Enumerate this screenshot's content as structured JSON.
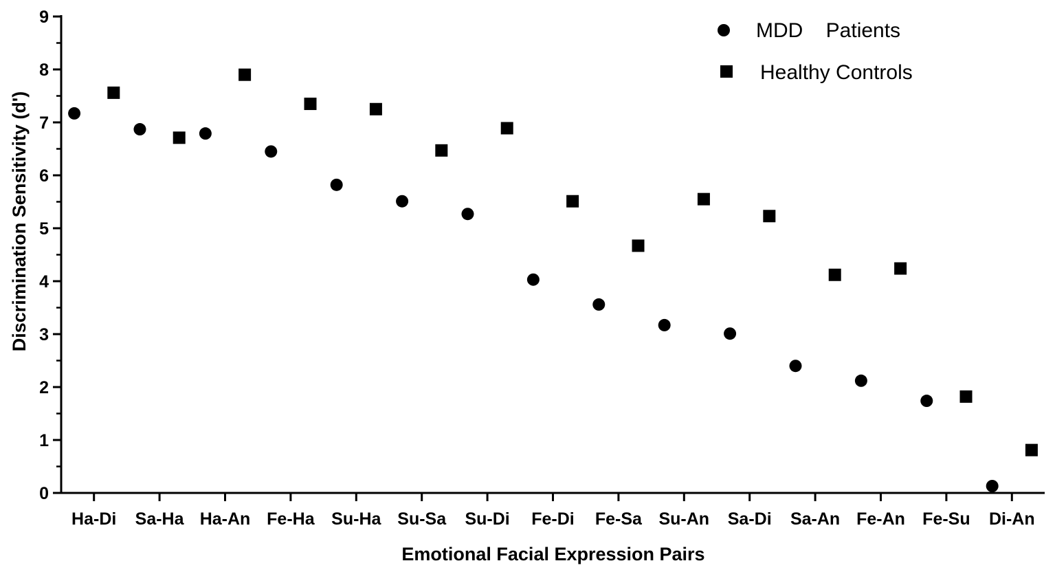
{
  "chart_data": {
    "type": "scatter",
    "xlabel": "Emotional Facial Expression Pairs",
    "ylabel": "Discrimination Sensitivity (d')",
    "ylim": [
      0,
      9
    ],
    "yticks": [
      "0",
      "1",
      "2",
      "3",
      "4",
      "5",
      "6",
      "7",
      "8",
      "9"
    ],
    "categories": [
      "Ha-Di",
      "Sa-Ha",
      "Ha-An",
      "Fe-Ha",
      "Su-Ha",
      "Su-Sa",
      "Su-Di",
      "Fe-Di",
      "Fe-Sa",
      "Su-An",
      "Sa-Di",
      "Sa-An",
      "Fe-An",
      "Fe-Su",
      "Di-An"
    ],
    "series": [
      {
        "name": "MDD    Patients",
        "marker": "circle",
        "color": "#000000",
        "values": [
          7.17,
          6.87,
          6.79,
          6.45,
          5.82,
          5.51,
          5.27,
          4.03,
          3.56,
          3.17,
          3.01,
          2.4,
          2.12,
          1.74,
          0.13
        ]
      },
      {
        "name": "Healthy Controls",
        "marker": "square",
        "color": "#000000",
        "values": [
          7.56,
          6.71,
          7.9,
          7.35,
          7.25,
          6.47,
          6.89,
          5.51,
          4.67,
          5.55,
          5.23,
          4.12,
          4.24,
          1.82,
          0.81
        ]
      }
    ],
    "grid": false,
    "legend_position": "top-right"
  }
}
